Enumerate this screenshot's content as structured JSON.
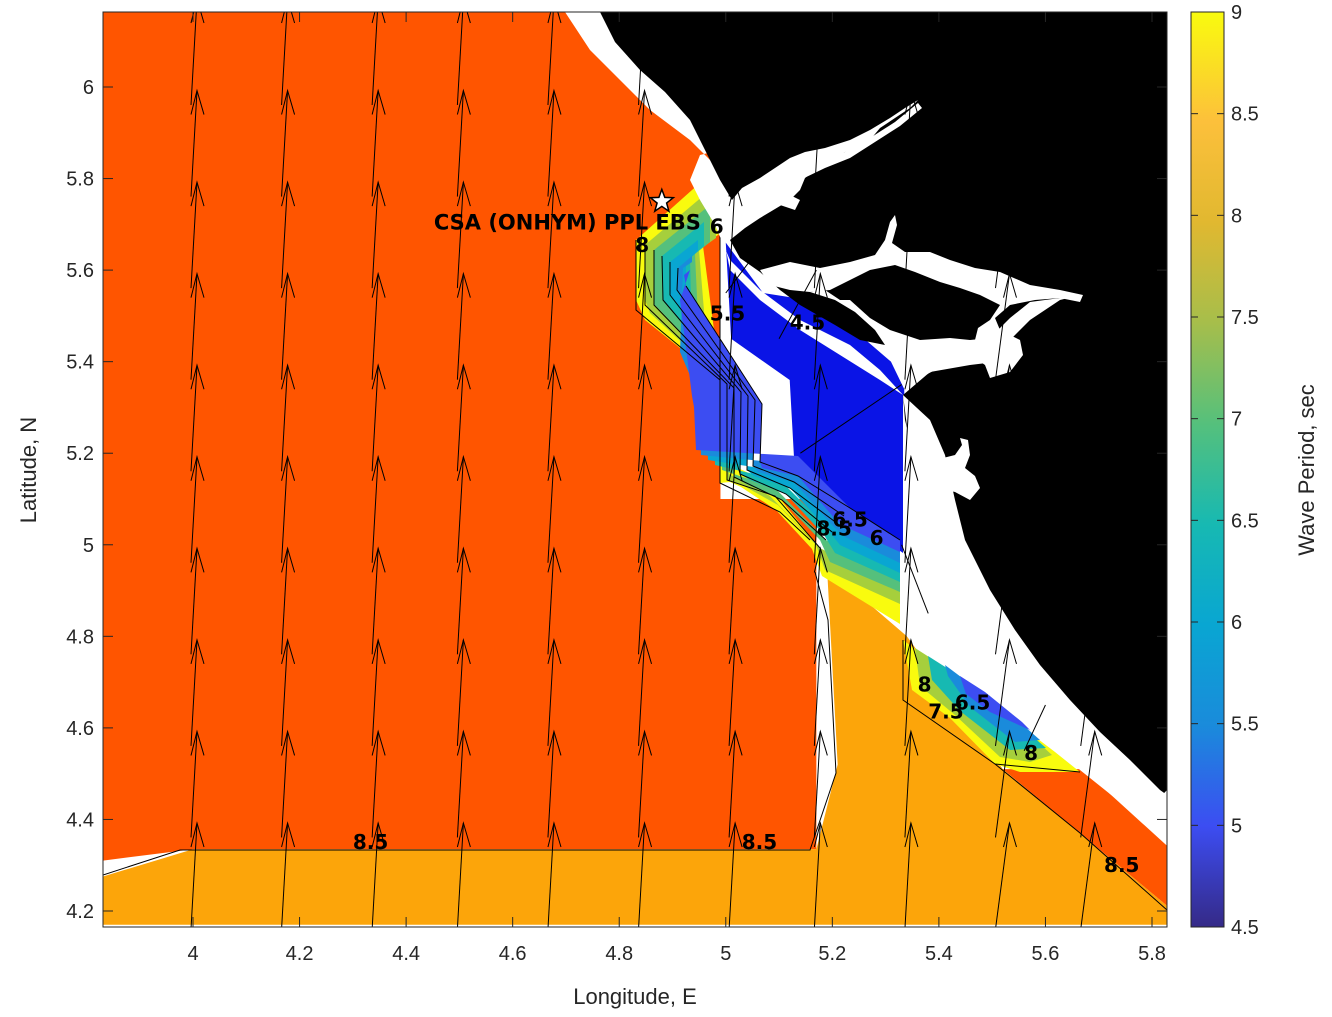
{
  "chart_data": {
    "type": "heatmap",
    "subtype": "filled-contour map with wave-direction vectors",
    "title": "",
    "xlabel": "Longitude, E",
    "ylabel": "Latitude, N",
    "xlim": [
      3.83,
      5.84
    ],
    "ylim": [
      4.17,
      6.17
    ],
    "xticks": [
      "4",
      "4.2",
      "4.4",
      "4.6",
      "4.8",
      "5",
      "5.2",
      "5.4",
      "5.6",
      "5.8"
    ],
    "yticks": [
      "4.2",
      "4.4",
      "4.6",
      "4.8",
      "5",
      "5.2",
      "5.4",
      "5.6",
      "5.8",
      "6"
    ],
    "colorbar": {
      "label": "Wave Period, sec",
      "range": [
        4.5,
        9
      ],
      "ticks": [
        "4.5",
        "5",
        "5.5",
        "6",
        "6.5",
        "7",
        "7.5",
        "8",
        "8.5",
        "9"
      ],
      "colormap": "parula"
    },
    "regions": [
      {
        "period": 8.75,
        "color": "#ff5500",
        "polygon": [
          [
            3.83,
            6.17
          ],
          [
            4.7,
            6.17
          ],
          [
            4.99,
            5.84
          ],
          [
            4.99,
            5.1
          ],
          [
            5.17,
            5.1
          ],
          [
            5.17,
            4.335
          ],
          [
            4.0,
            4.335
          ],
          [
            3.83,
            4.31
          ]
        ]
      },
      {
        "period": 8.25,
        "color": "#fca50a",
        "polygon": [
          [
            3.83,
            4.275
          ],
          [
            4.0,
            4.335
          ],
          [
            5.17,
            4.335
          ],
          [
            5.21,
            4.52
          ],
          [
            5.19,
            4.95
          ],
          [
            5.34,
            4.8
          ],
          [
            5.52,
            4.51
          ],
          [
            5.84,
            4.2
          ],
          [
            5.84,
            4.17
          ],
          [
            3.83,
            4.17
          ]
        ]
      },
      {
        "period": 4.75,
        "color": "#0a14e6",
        "polygon": [
          [
            5.0,
            5.66
          ],
          [
            5.07,
            5.55
          ],
          [
            5.18,
            5.53
          ],
          [
            5.31,
            5.4
          ],
          [
            5.335,
            5.34
          ],
          [
            5.335,
            4.98
          ],
          [
            5.13,
            5.15
          ],
          [
            5.12,
            5.36
          ],
          [
            5.01,
            5.45
          ]
        ]
      },
      {
        "period": 8.75,
        "color": "#ff5500",
        "polygon": [
          [
            5.52,
            4.51
          ],
          [
            5.67,
            4.51
          ],
          [
            5.84,
            4.33
          ],
          [
            5.84,
            4.2
          ]
        ]
      }
    ],
    "contour_labels": [
      {
        "text": "8.5",
        "lon": 4.3,
        "lat": 4.335
      },
      {
        "text": "8.5",
        "lon": 5.03,
        "lat": 4.335
      },
      {
        "text": "8.5",
        "lon": 5.71,
        "lat": 4.285
      },
      {
        "text": "4.5",
        "lon": 5.12,
        "lat": 5.47
      },
      {
        "text": "5.5",
        "lon": 4.97,
        "lat": 5.49
      },
      {
        "text": "6",
        "lon": 5.27,
        "lat": 5.0
      },
      {
        "text": "6.5",
        "lon": 5.2,
        "lat": 5.04
      },
      {
        "text": "8.5",
        "lon": 5.17,
        "lat": 5.02
      },
      {
        "text": "8",
        "lon": 5.36,
        "lat": 4.68
      },
      {
        "text": "7.5",
        "lon": 5.38,
        "lat": 4.62
      },
      {
        "text": "6.5",
        "lon": 5.43,
        "lat": 4.64
      },
      {
        "text": "8",
        "lon": 5.56,
        "lat": 4.53
      },
      {
        "text": "8",
        "lon": 4.83,
        "lat": 5.64
      },
      {
        "text": "6",
        "lon": 4.97,
        "lat": 5.68
      }
    ],
    "site": {
      "name": "CSA (ONHYM) PPL EBS",
      "lon": 4.88,
      "lat": 5.75
    },
    "vectors": {
      "description": "wave direction arrows, mostly pointing north-northeast",
      "lon_grid": [
        4.0,
        4.17,
        4.34,
        4.5,
        4.67,
        4.84,
        5.01,
        5.17,
        5.34,
        5.51,
        5.67
      ],
      "lat_grid": [
        4.2,
        4.4,
        4.6,
        4.8,
        5.0,
        5.2,
        5.4,
        5.6,
        5.8,
        6.0
      ]
    }
  }
}
